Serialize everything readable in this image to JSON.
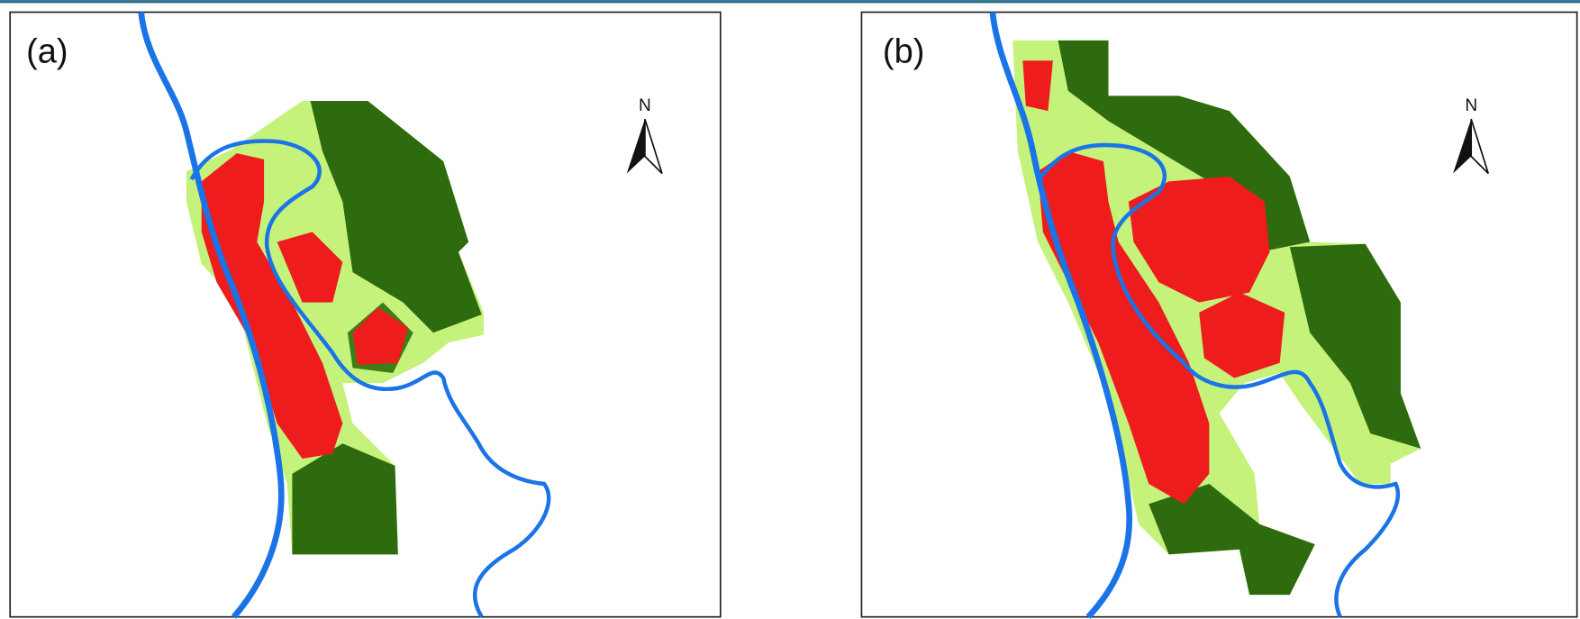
{
  "panels": [
    {
      "label": "(a)",
      "north": "N"
    },
    {
      "label": "(b)",
      "north": "N"
    }
  ]
}
